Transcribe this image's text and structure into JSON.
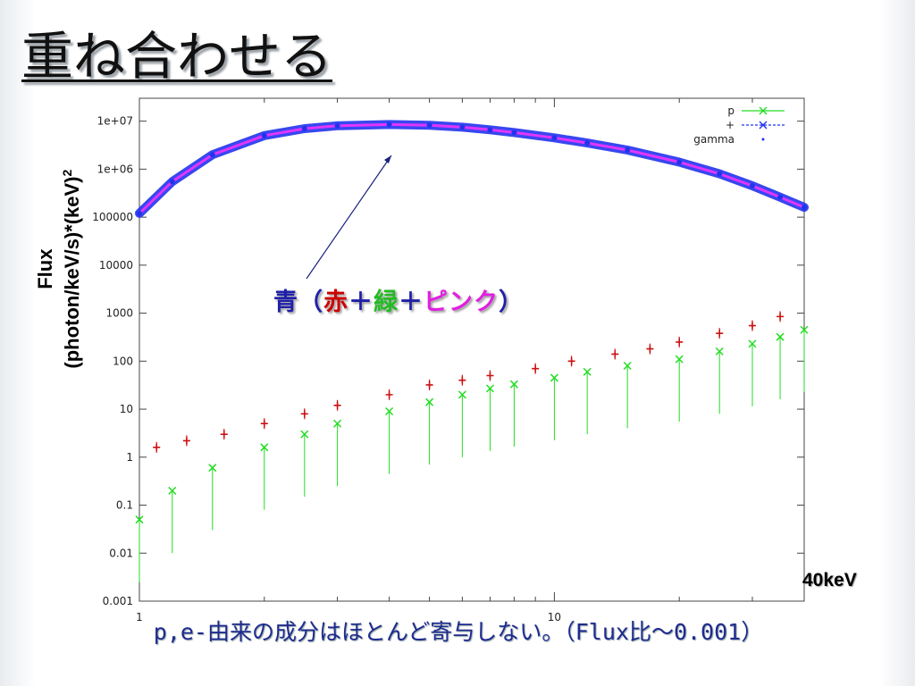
{
  "slide": {
    "title": "重ね合わせる",
    "caption": "p,e-由来の成分はほとんど寄与しない。（Flux比～0.001）",
    "energy_label": "40keV"
  },
  "annotation": {
    "blue": "青",
    "open_paren": "（",
    "red": "赤",
    "plus1": "＋",
    "green": "緑",
    "plus2": "＋",
    "pink": "ピンク",
    "close_paren": "）"
  },
  "chart_data": {
    "type": "scatter",
    "xscale": "log",
    "yscale": "log",
    "xlim": [
      1,
      40
    ],
    "ylim": [
      0.001,
      30000000
    ],
    "ylabel": {
      "line1": "Flux",
      "line2": "(photon/keV/s)*(keV)",
      "sup": "2"
    },
    "xticks": [
      "1",
      "10"
    ],
    "yticks": [
      "1e+07",
      "1e+06",
      "100000",
      "10000",
      "1000",
      "100",
      "10",
      "1",
      "0.1",
      "0.01",
      "0.001"
    ],
    "legend": {
      "placement": "top-right",
      "entries": [
        "p",
        "+",
        "gamma"
      ]
    },
    "colors": {
      "p": "#22dd22",
      "e": "#cc1111",
      "gamma": "#2233ee",
      "gamma_total": "#ff33ff"
    },
    "series": [
      {
        "name": "gamma",
        "x": [
          1,
          1.2,
          1.5,
          2,
          2.5,
          3,
          4,
          5,
          6,
          7,
          8,
          10,
          12,
          15,
          20,
          25,
          30,
          35,
          40
        ],
        "y": [
          120000,
          550000,
          2000000,
          5000000,
          7000000,
          8000000,
          8500000,
          8200000,
          7500000,
          6600000,
          5800000,
          4500000,
          3500000,
          2500000,
          1400000,
          800000,
          450000,
          260000,
          160000
        ]
      },
      {
        "name": "p",
        "x": [
          1,
          1.2,
          1.5,
          2,
          2.5,
          3,
          4,
          5,
          6,
          7,
          8,
          10,
          12,
          15,
          20,
          25,
          30,
          35,
          40
        ],
        "y": [
          0.05,
          0.2,
          0.6,
          1.6,
          3,
          5,
          9,
          14,
          20,
          27,
          33,
          45,
          60,
          80,
          110,
          160,
          230,
          320,
          450
        ]
      },
      {
        "name": "+",
        "x": [
          1.1,
          1.3,
          1.6,
          2,
          2.5,
          3,
          4,
          5,
          6,
          7,
          9,
          11,
          14,
          17,
          20,
          25,
          30,
          35
        ],
        "y": [
          1.6,
          2.2,
          3,
          5,
          8,
          12,
          20,
          32,
          40,
          50,
          70,
          100,
          140,
          180,
          250,
          380,
          550,
          850
        ]
      }
    ]
  }
}
